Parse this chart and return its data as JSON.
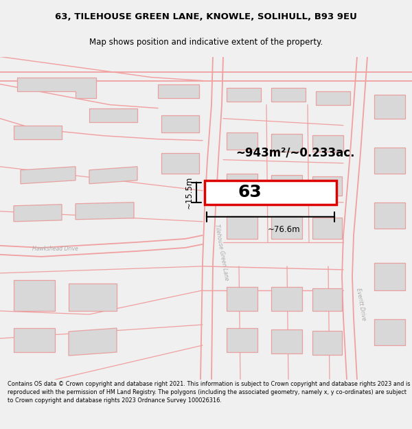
{
  "title_line1": "63, TILEHOUSE GREEN LANE, KNOWLE, SOLIHULL, B93 9EU",
  "title_line2": "Map shows position and indicative extent of the property.",
  "area_text": "~943m²/~0.233ac.",
  "label_number": "63",
  "dim_width": "~76.6m",
  "dim_height": "~15.5m",
  "road_name1": "Tilehouse Green Lane",
  "road_name2": "Hawkshead Drive",
  "road_name3": "Everitt Drive",
  "footer_text": "Contains OS data © Crown copyright and database right 2021. This information is subject to Crown copyright and database rights 2023 and is reproduced with the permission of HM Land Registry. The polygons (including the associated geometry, namely x, y co-ordinates) are subject to Crown copyright and database rights 2023 Ordnance Survey 100026316.",
  "bg_color": "#f0f0f0",
  "map_bg": "#ffffff",
  "road_stroke": "#f0a0a0",
  "highlight_fill": "#ffffff",
  "highlight_stroke": "#dd0000",
  "building_fill": "#d8d8d8",
  "building_stroke": "#e8a0a0",
  "dim_line_color": "#000000",
  "text_color": "#000000",
  "road_label_color": "#aaaaaa"
}
